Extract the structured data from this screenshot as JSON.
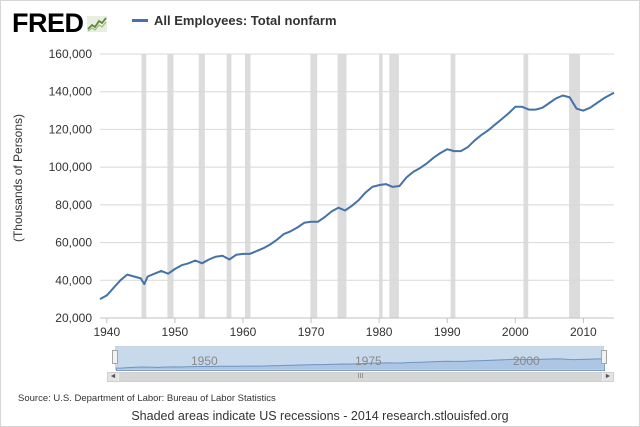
{
  "brand": {
    "name": "FRED"
  },
  "chart_data": {
    "type": "line",
    "title": "",
    "xlabel": "",
    "ylabel": "(Thousands of Persons)",
    "xlim": [
      1939,
      2014.5
    ],
    "ylim": [
      20000,
      160000
    ],
    "grid": true,
    "legend_position": "top",
    "line_color": "#4572a7",
    "recession_color": "#dcdcdc",
    "x_ticks": [
      1940,
      1950,
      1960,
      1970,
      1980,
      1990,
      2000,
      2010
    ],
    "y_ticks": [
      20000,
      40000,
      60000,
      80000,
      100000,
      120000,
      140000,
      160000
    ],
    "y_tick_labels": [
      "20,000",
      "40,000",
      "60,000",
      "80,000",
      "100,000",
      "120,000",
      "140,000",
      "160,000"
    ],
    "series": [
      {
        "name": "All Employees: Total nonfarm",
        "x": [
          1939,
          1940,
          1941,
          1942,
          1943,
          1944,
          1945,
          1945.5,
          1946,
          1947,
          1948,
          1949,
          1950,
          1951,
          1952,
          1953,
          1954,
          1955,
          1956,
          1957,
          1958,
          1959,
          1960,
          1961,
          1962,
          1963,
          1964,
          1965,
          1966,
          1967,
          1968,
          1969,
          1970,
          1971,
          1972,
          1973,
          1974,
          1975,
          1976,
          1977,
          1978,
          1979,
          1980,
          1981,
          1982,
          1983,
          1984,
          1985,
          1986,
          1987,
          1988,
          1989,
          1990,
          1991,
          1992,
          1993,
          1994,
          1995,
          1996,
          1997,
          1998,
          1999,
          2000,
          2001,
          2002,
          2003,
          2004,
          2005,
          2006,
          2007,
          2008,
          2009,
          2010,
          2011,
          2012,
          2013,
          2014.5
        ],
        "values": [
          30000,
          32000,
          36000,
          40000,
          43000,
          42000,
          41000,
          38000,
          42000,
          43500,
          45000,
          43500,
          46000,
          48000,
          49000,
          50500,
          49000,
          51000,
          52500,
          53000,
          51000,
          53500,
          54000,
          54000,
          55500,
          57000,
          59000,
          61500,
          64500,
          66000,
          68000,
          70500,
          71000,
          71000,
          73500,
          76500,
          78500,
          77000,
          79500,
          82500,
          86500,
          89500,
          90500,
          91000,
          89500,
          90000,
          94500,
          97500,
          99500,
          102000,
          105000,
          107500,
          109500,
          108500,
          108500,
          110500,
          114000,
          117000,
          119500,
          122500,
          125500,
          128500,
          132000,
          132000,
          130500,
          130500,
          131500,
          134000,
          136500,
          138000,
          137000,
          131000,
          130000,
          131500,
          134000,
          136500,
          139500
        ]
      }
    ],
    "recessions": [
      [
        1945.1,
        1945.8
      ],
      [
        1948.9,
        1949.8
      ],
      [
        1953.5,
        1954.4
      ],
      [
        1957.6,
        1958.3
      ],
      [
        1960.3,
        1961.1
      ],
      [
        1969.9,
        1970.9
      ],
      [
        1973.9,
        1975.2
      ],
      [
        1980.0,
        1980.5
      ],
      [
        1981.5,
        1982.9
      ],
      [
        1990.5,
        1991.2
      ],
      [
        2001.2,
        2001.9
      ],
      [
        2007.9,
        2009.5
      ]
    ]
  },
  "navigator": {
    "labels": [
      "1950",
      "1975",
      "2000"
    ],
    "scrollbar_left_icon": "arrow-left-icon",
    "scrollbar_right_icon": "arrow-right-icon",
    "scrollbar_grip_icon": "grip-icon",
    "scroll_left_glyph": "◄",
    "scroll_right_glyph": "►",
    "grip_glyph": "III"
  },
  "source_text": "Source: U.S. Department of Labor: Bureau of Labor Statistics",
  "footer_text": "Shaded areas indicate US recessions - 2014 research.stlouisfed.org"
}
